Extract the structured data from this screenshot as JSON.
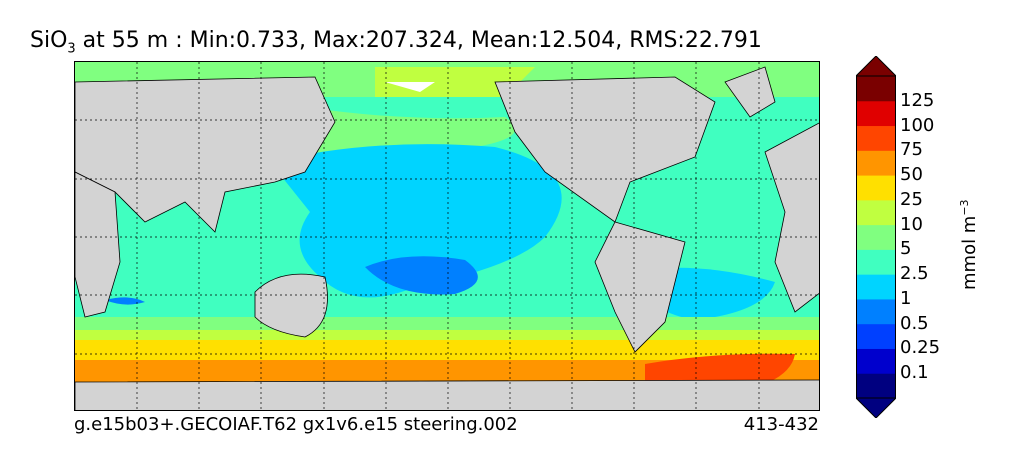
{
  "title": {
    "species": "SiO",
    "subscript": "3",
    "rest": " at 55 m : Min:0.733, Max:207.324, Mean:12.504, RMS:22.791"
  },
  "footer": {
    "run": "g.e15b03+.GECOIAF.T62 gx1v6.e15 steering.002",
    "years": "413-432"
  },
  "colorbar": {
    "unit_main": "mmol m",
    "unit_exp": "−3",
    "levels": [
      "0.1",
      "0.25",
      "0.5",
      "1",
      "2.5",
      "5",
      "10",
      "25",
      "50",
      "75",
      "100",
      "125"
    ],
    "colors": [
      "#000080",
      "#0000cd",
      "#0040ff",
      "#0080ff",
      "#00d4ff",
      "#40ffc0",
      "#80ff80",
      "#c0ff40",
      "#ffe000",
      "#ff9500",
      "#ff4500",
      "#e00000",
      "#7a0000"
    ]
  },
  "map": {
    "land_color": "#d3d3d3",
    "missing_color": "#ffffff"
  }
}
